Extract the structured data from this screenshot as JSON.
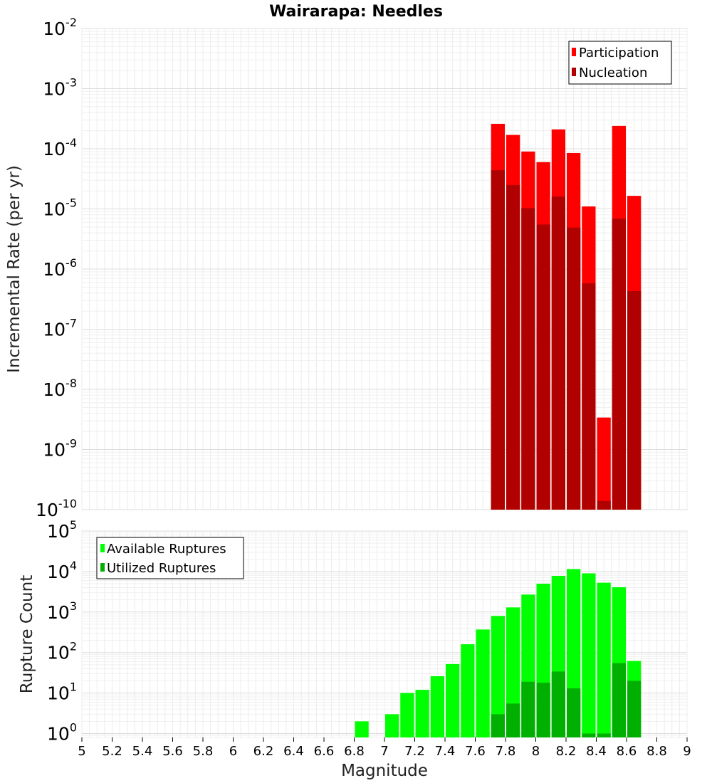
{
  "title": "Wairarapa: Needles",
  "chart_data": [
    {
      "type": "bar",
      "ylabel": "Incremental Rate (per yr)",
      "xlabel": "",
      "yscale": "log",
      "ylim": [
        1e-10,
        0.01
      ],
      "y_tick_exponents": [
        -2,
        -3,
        -4,
        -5,
        -6,
        -7,
        -8,
        -9,
        -10
      ],
      "xlim": [
        5,
        9
      ],
      "bin_width": 0.1,
      "grid": true,
      "legend_position": "top-right",
      "colors": {
        "Participation": "#ff0000",
        "Nucleation": "#b00000"
      },
      "series": [
        {
          "name": "Participation",
          "x": [
            7.75,
            7.85,
            7.95,
            8.05,
            8.15,
            8.25,
            8.35,
            8.45,
            8.55,
            8.65
          ],
          "values": [
            0.00026,
            0.00017,
            9e-05,
            6e-05,
            0.00021,
            8.5e-05,
            1.1e-05,
            3.4e-09,
            0.00024,
            1.65e-05
          ]
        },
        {
          "name": "Nucleation",
          "x": [
            7.75,
            7.85,
            7.95,
            8.05,
            8.15,
            8.25,
            8.35,
            8.45,
            8.55,
            8.65
          ],
          "values": [
            4.4e-05,
            2.5e-05,
            1.03e-05,
            5.5e-06,
            1.6e-05,
            4.9e-06,
            5.8e-07,
            1.4e-10,
            6.9e-06,
            4.3e-07
          ]
        }
      ]
    },
    {
      "type": "bar",
      "ylabel": "Rupture Count",
      "xlabel": "Magnitude",
      "yscale": "log",
      "ylim": [
        0.8,
        100000.0
      ],
      "y_tick_exponents": [
        5,
        4,
        3,
        2,
        1,
        0
      ],
      "xlim": [
        5,
        9
      ],
      "x_ticks": [
        "5",
        "5.2",
        "5.4",
        "5.6",
        "5.8",
        "6",
        "6.2",
        "6.4",
        "6.6",
        "6.8",
        "7",
        "7.2",
        "7.4",
        "7.6",
        "7.8",
        "8",
        "8.2",
        "8.4",
        "8.6",
        "8.8",
        "9"
      ],
      "bin_width": 0.1,
      "grid": true,
      "legend_position": "top-left",
      "colors": {
        "Available Ruptures": "#00ff00",
        "Utilized Ruptures": "#00b000"
      },
      "series": [
        {
          "name": "Available Ruptures",
          "x": [
            6.85,
            7.05,
            7.15,
            7.25,
            7.35,
            7.45,
            7.55,
            7.65,
            7.75,
            7.85,
            7.95,
            8.05,
            8.15,
            8.25,
            8.35,
            8.45,
            8.55,
            8.65
          ],
          "values": [
            2,
            3,
            10,
            12,
            26,
            52,
            160,
            370,
            800,
            1300,
            2700,
            5000,
            7800,
            11500,
            9000,
            5300,
            4100,
            62
          ]
        },
        {
          "name": "Utilized Ruptures",
          "x": [
            7.75,
            7.85,
            7.95,
            8.05,
            8.15,
            8.25,
            8.35,
            8.45,
            8.55,
            8.65
          ],
          "values": [
            3,
            5.5,
            19,
            18,
            34,
            13,
            1,
            1,
            55,
            20
          ]
        }
      ]
    }
  ]
}
